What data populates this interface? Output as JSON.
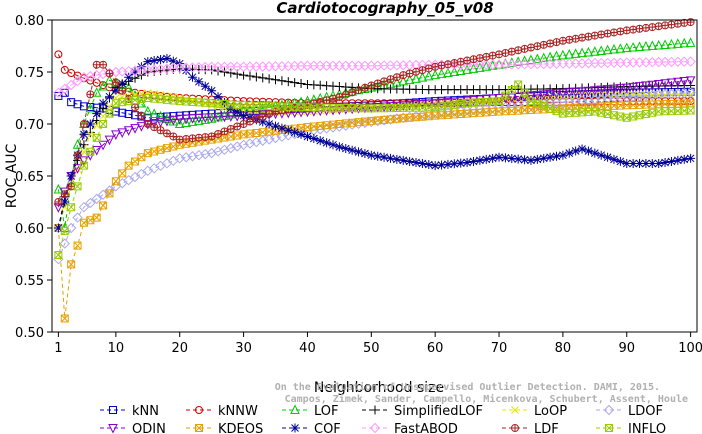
{
  "chart_data": {
    "type": "line",
    "title": "Cardiotocography_05_v08",
    "xlabel": "Neighborhood size",
    "ylabel": "ROC AUC",
    "xlim": [
      0,
      101
    ],
    "ylim": [
      0.5,
      0.8
    ],
    "xticks": [
      1,
      10,
      20,
      30,
      40,
      50,
      60,
      70,
      80,
      90,
      100
    ],
    "yticks": [
      "0.50",
      "0.55",
      "0.60",
      "0.65",
      "0.70",
      "0.75",
      "0.80"
    ],
    "legend_position": "bottom",
    "watermark": [
      "Campos, Zimek, Sander, Campello, Micenkova, Schubert, Assent, Houle",
      "On the Evaluation of Unsupervised Outlier Detection. DAMI, 2015."
    ],
    "series": [
      {
        "name": "kNN",
        "color": "#0000cc",
        "marker": "square",
        "points": [
          [
            1,
            0.727
          ],
          [
            2,
            0.73
          ],
          [
            3,
            0.721
          ],
          [
            5,
            0.717
          ],
          [
            8,
            0.715
          ],
          [
            10,
            0.712
          ],
          [
            15,
            0.706
          ],
          [
            20,
            0.708
          ],
          [
            30,
            0.712
          ],
          [
            40,
            0.715
          ],
          [
            50,
            0.718
          ],
          [
            60,
            0.722
          ],
          [
            70,
            0.725
          ],
          [
            80,
            0.728
          ],
          [
            90,
            0.73
          ],
          [
            100,
            0.731
          ]
        ]
      },
      {
        "name": "kNNW",
        "color": "#cc0000",
        "marker": "circle",
        "points": [
          [
            1,
            0.767
          ],
          [
            2,
            0.752
          ],
          [
            3,
            0.749
          ],
          [
            5,
            0.744
          ],
          [
            10,
            0.733
          ],
          [
            15,
            0.728
          ],
          [
            20,
            0.725
          ],
          [
            30,
            0.722
          ],
          [
            40,
            0.72
          ],
          [
            50,
            0.72
          ],
          [
            60,
            0.72
          ],
          [
            70,
            0.721
          ],
          [
            80,
            0.721
          ],
          [
            90,
            0.722
          ],
          [
            100,
            0.722
          ]
        ]
      },
      {
        "name": "LOF",
        "color": "#00cc00",
        "marker": "triangle",
        "points": [
          [
            1,
            0.637
          ],
          [
            2,
            0.6
          ],
          [
            3,
            0.645
          ],
          [
            4,
            0.68
          ],
          [
            5,
            0.7
          ],
          [
            7,
            0.73
          ],
          [
            9,
            0.742
          ],
          [
            12,
            0.735
          ],
          [
            15,
            0.712
          ],
          [
            20,
            0.7
          ],
          [
            25,
            0.705
          ],
          [
            30,
            0.712
          ],
          [
            40,
            0.722
          ],
          [
            50,
            0.735
          ],
          [
            60,
            0.747
          ],
          [
            70,
            0.757
          ],
          [
            80,
            0.766
          ],
          [
            90,
            0.773
          ],
          [
            100,
            0.778
          ]
        ]
      },
      {
        "name": "SimplifiedLOF",
        "color": "#000000",
        "marker": "plus",
        "points": [
          [
            1,
            0.6
          ],
          [
            2,
            0.63
          ],
          [
            3,
            0.65
          ],
          [
            5,
            0.68
          ],
          [
            8,
            0.715
          ],
          [
            10,
            0.735
          ],
          [
            15,
            0.75
          ],
          [
            20,
            0.753
          ],
          [
            25,
            0.752
          ],
          [
            30,
            0.747
          ],
          [
            40,
            0.738
          ],
          [
            50,
            0.734
          ],
          [
            60,
            0.733
          ],
          [
            70,
            0.733
          ],
          [
            80,
            0.734
          ],
          [
            90,
            0.736
          ],
          [
            100,
            0.737
          ]
        ]
      },
      {
        "name": "LoOP",
        "color": "#e6e600",
        "marker": "x",
        "points": [
          [
            1,
            0.6
          ],
          [
            3,
            0.64
          ],
          [
            6,
            0.69
          ],
          [
            10,
            0.725
          ],
          [
            15,
            0.73
          ],
          [
            20,
            0.725
          ],
          [
            25,
            0.718
          ],
          [
            30,
            0.712
          ],
          [
            40,
            0.712
          ],
          [
            50,
            0.716
          ],
          [
            60,
            0.72
          ],
          [
            70,
            0.724
          ],
          [
            80,
            0.727
          ],
          [
            90,
            0.728
          ],
          [
            100,
            0.728
          ]
        ]
      },
      {
        "name": "LDOF",
        "color": "#aaaaee",
        "marker": "diamond",
        "points": [
          [
            1,
            0.57
          ],
          [
            3,
            0.6
          ],
          [
            5,
            0.62
          ],
          [
            10,
            0.64
          ],
          [
            15,
            0.655
          ],
          [
            20,
            0.667
          ],
          [
            25,
            0.672
          ],
          [
            30,
            0.68
          ],
          [
            40,
            0.693
          ],
          [
            50,
            0.702
          ],
          [
            60,
            0.71
          ],
          [
            70,
            0.716
          ],
          [
            80,
            0.721
          ],
          [
            90,
            0.726
          ],
          [
            100,
            0.73
          ]
        ]
      },
      {
        "name": "ODIN",
        "color": "#8800cc",
        "marker": "triangle-down",
        "points": [
          [
            1,
            0.62
          ],
          [
            3,
            0.65
          ],
          [
            5,
            0.665
          ],
          [
            8,
            0.68
          ],
          [
            10,
            0.69
          ],
          [
            15,
            0.7
          ],
          [
            20,
            0.705
          ],
          [
            30,
            0.708
          ],
          [
            40,
            0.712
          ],
          [
            50,
            0.716
          ],
          [
            60,
            0.72
          ],
          [
            70,
            0.725
          ],
          [
            80,
            0.73
          ],
          [
            90,
            0.735
          ],
          [
            100,
            0.742
          ]
        ]
      },
      {
        "name": "KDEOS",
        "color": "#e6a000",
        "marker": "boxed-x",
        "points": [
          [
            1,
            0.6
          ],
          [
            2,
            0.513
          ],
          [
            3,
            0.565
          ],
          [
            4,
            0.583
          ],
          [
            5,
            0.605
          ],
          [
            7,
            0.61
          ],
          [
            10,
            0.645
          ],
          [
            12,
            0.66
          ],
          [
            15,
            0.672
          ],
          [
            20,
            0.68
          ],
          [
            30,
            0.69
          ],
          [
            40,
            0.697
          ],
          [
            50,
            0.703
          ],
          [
            60,
            0.708
          ],
          [
            70,
            0.712
          ],
          [
            80,
            0.715
          ],
          [
            90,
            0.718
          ],
          [
            100,
            0.72
          ]
        ]
      },
      {
        "name": "COF",
        "color": "#000099",
        "marker": "star",
        "points": [
          [
            1,
            0.6
          ],
          [
            3,
            0.65
          ],
          [
            5,
            0.69
          ],
          [
            8,
            0.72
          ],
          [
            12,
            0.745
          ],
          [
            15,
            0.76
          ],
          [
            18,
            0.763
          ],
          [
            20,
            0.758
          ],
          [
            22,
            0.745
          ],
          [
            25,
            0.732
          ],
          [
            28,
            0.715
          ],
          [
            30,
            0.708
          ],
          [
            35,
            0.698
          ],
          [
            40,
            0.688
          ],
          [
            45,
            0.678
          ],
          [
            50,
            0.67
          ],
          [
            55,
            0.665
          ],
          [
            60,
            0.66
          ],
          [
            65,
            0.663
          ],
          [
            70,
            0.668
          ],
          [
            75,
            0.665
          ],
          [
            80,
            0.67
          ],
          [
            83,
            0.676
          ],
          [
            85,
            0.672
          ],
          [
            90,
            0.662
          ],
          [
            95,
            0.662
          ],
          [
            100,
            0.667
          ]
        ]
      },
      {
        "name": "FastABOD",
        "color": "#ff99ff",
        "marker": "diamond",
        "points": [
          [
            1,
            0.73
          ],
          [
            5,
            0.745
          ],
          [
            10,
            0.75
          ],
          [
            15,
            0.752
          ],
          [
            20,
            0.754
          ],
          [
            25,
            0.755
          ],
          [
            30,
            0.755
          ],
          [
            40,
            0.756
          ],
          [
            50,
            0.756
          ],
          [
            60,
            0.757
          ],
          [
            70,
            0.757
          ],
          [
            80,
            0.758
          ],
          [
            90,
            0.759
          ],
          [
            100,
            0.76
          ]
        ]
      },
      {
        "name": "LDF",
        "color": "#aa2222",
        "marker": "circle-plus",
        "points": [
          [
            1,
            0.625
          ],
          [
            3,
            0.64
          ],
          [
            5,
            0.7
          ],
          [
            7,
            0.757
          ],
          [
            8,
            0.757
          ],
          [
            10,
            0.74
          ],
          [
            15,
            0.7
          ],
          [
            20,
            0.685
          ],
          [
            25,
            0.688
          ],
          [
            30,
            0.7
          ],
          [
            35,
            0.712
          ],
          [
            40,
            0.718
          ],
          [
            45,
            0.726
          ],
          [
            50,
            0.737
          ],
          [
            55,
            0.747
          ],
          [
            60,
            0.755
          ],
          [
            70,
            0.767
          ],
          [
            80,
            0.78
          ],
          [
            90,
            0.79
          ],
          [
            100,
            0.798
          ]
        ]
      },
      {
        "name": "INFLO",
        "color": "#99cc00",
        "marker": "boxed-x",
        "points": [
          [
            1,
            0.574
          ],
          [
            3,
            0.62
          ],
          [
            5,
            0.66
          ],
          [
            8,
            0.7
          ],
          [
            10,
            0.72
          ],
          [
            15,
            0.725
          ],
          [
            20,
            0.722
          ],
          [
            30,
            0.718
          ],
          [
            40,
            0.716
          ],
          [
            50,
            0.715
          ],
          [
            60,
            0.716
          ],
          [
            65,
            0.72
          ],
          [
            70,
            0.722
          ],
          [
            73,
            0.738
          ],
          [
            75,
            0.722
          ],
          [
            80,
            0.71
          ],
          [
            85,
            0.712
          ],
          [
            90,
            0.706
          ],
          [
            95,
            0.712
          ],
          [
            100,
            0.713
          ]
        ]
      }
    ]
  }
}
